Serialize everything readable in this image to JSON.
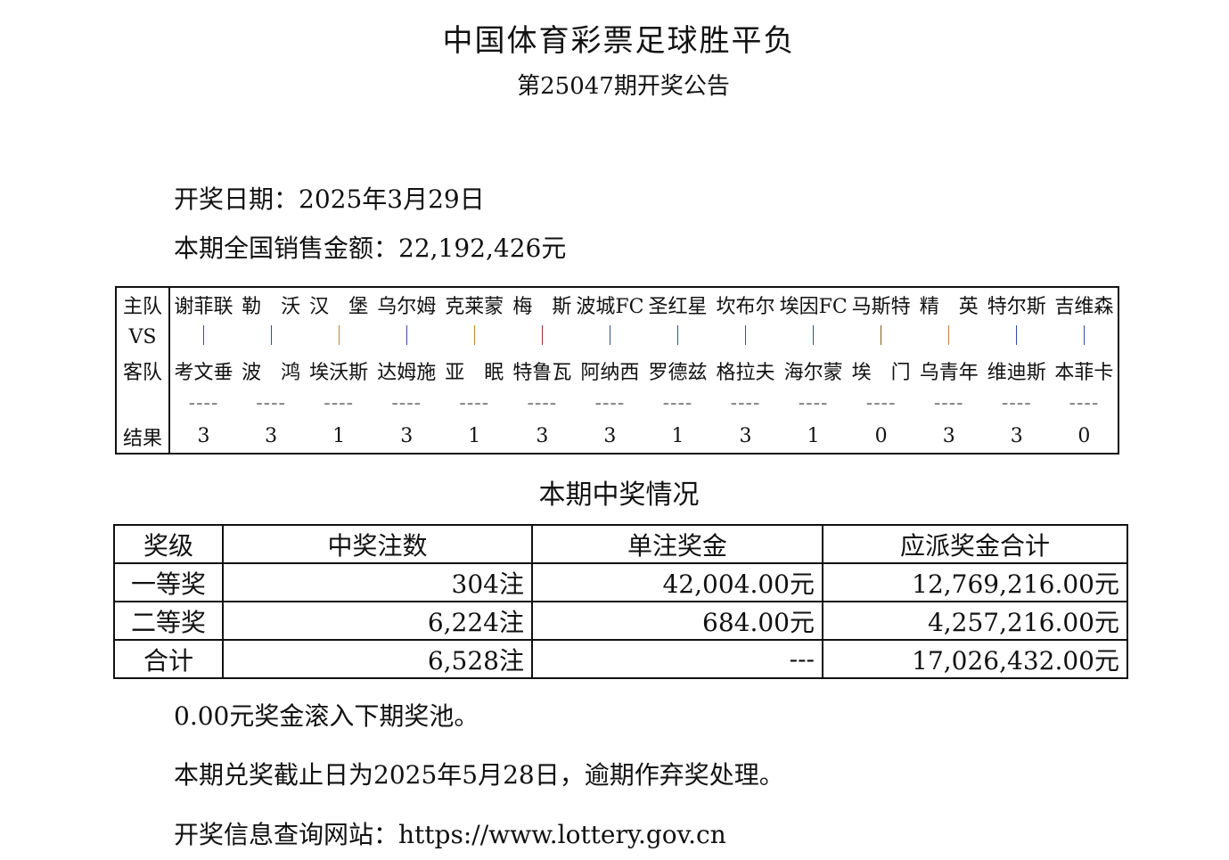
{
  "title": "中国体育彩票足球胜平负",
  "subtitle": "第25047期开奖公告",
  "draw_date": "开奖日期：2025年3月29日",
  "sales": "本期全国销售金额：22,192,426元",
  "match_table": {
    "labels": {
      "home": "主队",
      "vs": "VS",
      "away": "客队",
      "result": "结果"
    },
    "dash": "----",
    "matches": [
      {
        "home": "谢菲联",
        "away": "考文垂",
        "result": "3",
        "vs_color": "#3050a0"
      },
      {
        "home": "勒　沃",
        "away": "波　鸿",
        "result": "3",
        "vs_color": "#3050a0"
      },
      {
        "home": "汉　堡",
        "away": "埃沃斯",
        "result": "1",
        "vs_color": "#d08030"
      },
      {
        "home": "乌尔姆",
        "away": "达姆施",
        "result": "3",
        "vs_color": "#3050a0"
      },
      {
        "home": "克莱蒙",
        "away": "亚　眠",
        "result": "1",
        "vs_color": "#d08030"
      },
      {
        "home": "梅　斯",
        "away": "特鲁瓦",
        "result": "3",
        "vs_color": "#a03030"
      },
      {
        "home": "波城FC",
        "away": "阿纳西",
        "result": "3",
        "vs_color": "#3050a0"
      },
      {
        "home": "圣红星",
        "away": "罗德兹",
        "result": "1",
        "vs_color": "#3050a0"
      },
      {
        "home": "坎布尔",
        "away": "格拉夫",
        "result": "3",
        "vs_color": "#3050a0"
      },
      {
        "home": "埃因FC",
        "away": "海尔蒙",
        "result": "1",
        "vs_color": "#3050a0"
      },
      {
        "home": "马斯特",
        "away": "埃　门",
        "result": "0",
        "vs_color": "#806020"
      },
      {
        "home": "精　英",
        "away": "乌青年",
        "result": "3",
        "vs_color": "#d08030"
      },
      {
        "home": "特尔斯",
        "away": "维迪斯",
        "result": "3",
        "vs_color": "#3050a0"
      },
      {
        "home": "吉维森",
        "away": "本菲卡",
        "result": "0",
        "vs_color": "#3050a0"
      }
    ]
  },
  "section_title": "本期中奖情况",
  "prize_table": {
    "headers": [
      "奖级",
      "中奖注数",
      "单注奖金",
      "应派奖金合计"
    ],
    "rows": [
      [
        "一等奖",
        "304注",
        "42,004.00元",
        "12,769,216.00元"
      ],
      [
        "二等奖",
        "6,224注",
        "684.00元",
        "4,257,216.00元"
      ],
      [
        "合计",
        "6,528注",
        "---",
        "17,026,432.00元"
      ]
    ]
  },
  "rollover": "0.00元奖金滚入下期奖池。",
  "deadline": "本期兑奖截止日为2025年5月28日，逾期作弃奖处理。",
  "website": "开奖信息查询网站：https://www.lottery.gov.cn"
}
